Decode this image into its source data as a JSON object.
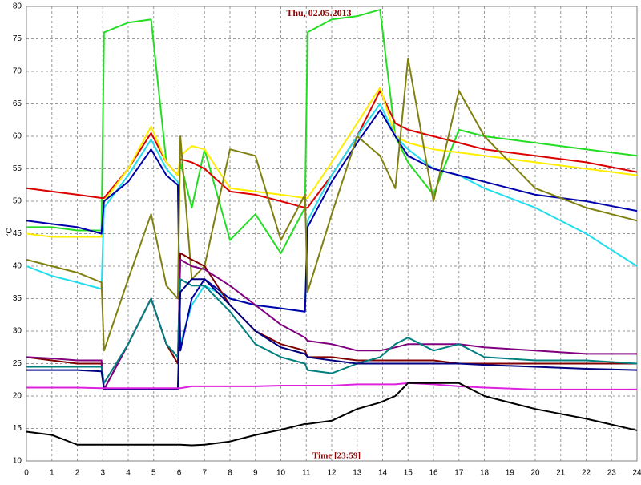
{
  "chart_data": {
    "type": "line",
    "title": "Thu, 02.05.2013",
    "x_label": "Time [23:59]",
    "y_label": "°C",
    "xlim": [
      0,
      24
    ],
    "ylim": [
      10,
      80
    ],
    "xticks": [
      0,
      1,
      2,
      3,
      4,
      5,
      6,
      7,
      8,
      9,
      10,
      11,
      12,
      13,
      14,
      15,
      16,
      17,
      18,
      19,
      20,
      21,
      22,
      23,
      24
    ],
    "yticks": [
      10,
      15,
      20,
      25,
      30,
      35,
      40,
      45,
      50,
      55,
      60,
      65,
      70,
      75,
      80
    ],
    "grid": true,
    "x": [
      0,
      1,
      2,
      2.95,
      3.05,
      4,
      4.9,
      5.5,
      5.95,
      6.05,
      6.5,
      7,
      8,
      9,
      10,
      10.95,
      11.05,
      12,
      13,
      13.9,
      14.5,
      15,
      16,
      17,
      18,
      20,
      22,
      24
    ],
    "series": [
      {
        "color": "#22dd22",
        "values": [
          46,
          46,
          45.5,
          45.5,
          76,
          77.5,
          78,
          56,
          54,
          56,
          49,
          58,
          44,
          48,
          42,
          49,
          76,
          78,
          78.5,
          79.5,
          60,
          56,
          51,
          61,
          60,
          59,
          58,
          57
        ]
      },
      {
        "color": "#dd0000",
        "values": [
          52,
          51.5,
          51,
          50.5,
          50.5,
          55,
          60.5,
          56,
          54,
          56.5,
          56,
          55,
          51.5,
          51,
          50,
          49,
          49,
          54,
          60,
          67,
          62,
          61,
          60,
          59,
          58,
          57,
          56,
          54.5
        ]
      },
      {
        "color": "#ffee00",
        "values": [
          45,
          44.5,
          44.5,
          44.5,
          50,
          55,
          61.5,
          56,
          54,
          57,
          58.5,
          58,
          52,
          51.5,
          51,
          50.5,
          50.5,
          56,
          62,
          67.5,
          60,
          59,
          58,
          57.5,
          57,
          56,
          55,
          54
        ]
      },
      {
        "color": "#22ddee",
        "values": [
          40,
          38.5,
          37.5,
          36.5,
          49,
          54,
          59.5,
          55,
          53,
          28,
          34,
          37,
          35,
          34,
          33.5,
          33,
          47,
          54,
          60,
          65,
          60,
          58,
          55,
          54,
          52,
          49,
          45,
          40
        ]
      },
      {
        "color": "#0000aa",
        "values": [
          47,
          46.5,
          46,
          45,
          50,
          53,
          58,
          54,
          52.5,
          27,
          35,
          38,
          35,
          34,
          33.5,
          33,
          46,
          53,
          59,
          64,
          60,
          57,
          55,
          54,
          53,
          51,
          50,
          48.5
        ]
      },
      {
        "color": "#808010",
        "values": [
          41,
          40,
          39,
          37.5,
          27,
          38,
          48,
          37,
          35,
          60,
          38,
          40,
          58,
          57,
          44,
          51,
          36,
          48,
          60,
          57,
          52,
          72,
          50,
          67,
          60,
          52,
          49,
          47
        ]
      },
      {
        "color": "#800000",
        "values": [
          26,
          25.5,
          25,
          25,
          21,
          28,
          35,
          28,
          25,
          42,
          41,
          40,
          34,
          30,
          28,
          27,
          26,
          26,
          25.5,
          25.5,
          25.5,
          25.5,
          25.5,
          25,
          25,
          25,
          25,
          25
        ]
      },
      {
        "color": "#800080",
        "values": [
          26,
          25.8,
          25.5,
          25.5,
          21,
          28,
          35,
          28,
          26,
          41,
          40,
          39.5,
          37,
          34,
          31,
          29,
          28.5,
          28,
          27,
          27,
          27.5,
          28,
          28,
          28,
          27.5,
          27,
          26.5,
          26.5
        ]
      },
      {
        "color": "#008080",
        "values": [
          24.5,
          24.5,
          24.5,
          24.5,
          22,
          28,
          35,
          28,
          26,
          38,
          37,
          37,
          33,
          28,
          26,
          25,
          24,
          23.5,
          25,
          26,
          28,
          29,
          27,
          28,
          26,
          25.5,
          25.5,
          25
        ]
      },
      {
        "color": "#000080",
        "values": [
          24,
          24,
          24,
          23.8,
          21,
          21,
          21,
          21,
          21,
          36,
          38,
          38,
          34,
          30,
          27.5,
          26.5,
          26,
          25.5,
          25,
          25,
          25,
          25,
          25,
          25,
          24.8,
          24.5,
          24.2,
          24
        ]
      },
      {
        "color": "#dd22dd",
        "values": [
          21.3,
          21.3,
          21.3,
          21.2,
          21.2,
          21.2,
          21.2,
          21.2,
          21.2,
          21.2,
          21.5,
          21.5,
          21.5,
          21.5,
          21.6,
          21.6,
          21.6,
          21.6,
          21.8,
          21.8,
          21.8,
          22,
          21.8,
          21.5,
          21.3,
          21,
          21,
          21
        ]
      },
      {
        "color": "#000000",
        "values": [
          14.5,
          14,
          12.5,
          12.5,
          12.5,
          12.5,
          12.5,
          12.5,
          12.5,
          12.5,
          12.4,
          12.5,
          13,
          14,
          14.8,
          15.7,
          15.7,
          16.2,
          18,
          19,
          20,
          22,
          22,
          22,
          20,
          18,
          16.5,
          14.7
        ]
      }
    ]
  }
}
